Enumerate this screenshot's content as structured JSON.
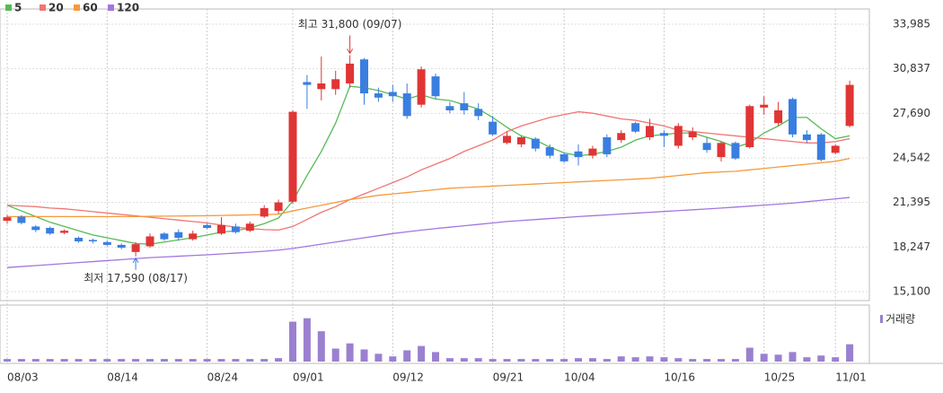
{
  "chart_data": {
    "type": "candlestick",
    "categories": [
      "08/03",
      null,
      null,
      null,
      null,
      null,
      null,
      "08/14",
      null,
      null,
      null,
      null,
      null,
      null,
      "08/24",
      null,
      null,
      null,
      null,
      null,
      "09/01",
      null,
      null,
      null,
      null,
      null,
      null,
      "09/12",
      null,
      null,
      null,
      null,
      null,
      null,
      "09/21",
      null,
      null,
      null,
      null,
      "10/04",
      null,
      null,
      null,
      null,
      null,
      null,
      "10/16",
      null,
      null,
      null,
      null,
      null,
      null,
      "10/25",
      null,
      null,
      null,
      null,
      "11/01",
      null
    ],
    "open": [
      20100,
      20400,
      19700,
      19600,
      19250,
      18900,
      18750,
      18600,
      18400,
      17900,
      18300,
      19200,
      19300,
      18800,
      19800,
      19200,
      19700,
      19400,
      20400,
      20800,
      21450,
      29900,
      29400,
      29400,
      29800,
      31500,
      29100,
      29200,
      29100,
      28300,
      30300,
      28200,
      28400,
      28000,
      27100,
      25600,
      25500,
      25900,
      25300,
      24800,
      25000,
      24700,
      26000,
      25800,
      27000,
      26000,
      26300,
      25400,
      26000,
      25600,
      24600,
      25600,
      25300,
      28100,
      27000,
      28700,
      26200,
      26200,
      24900,
      26800
    ],
    "high": [
      20500,
      20500,
      19800,
      19700,
      19500,
      19000,
      18850,
      18700,
      18500,
      18600,
      19200,
      19300,
      19500,
      19400,
      19900,
      20350,
      19900,
      20050,
      21200,
      21600,
      27900,
      30400,
      31700,
      30700,
      31800,
      31600,
      29500,
      29700,
      29800,
      31000,
      30500,
      28500,
      29200,
      28400,
      27500,
      26400,
      26100,
      26000,
      25500,
      24900,
      25500,
      25400,
      26200,
      26500,
      27100,
      27300,
      26500,
      27000,
      26700,
      26000,
      25700,
      25700,
      28300,
      28900,
      28500,
      28800,
      26500,
      26300,
      25500,
      30000
    ],
    "low": [
      19900,
      19850,
      19300,
      19100,
      19150,
      18550,
      18500,
      18300,
      18100,
      17590,
      18200,
      18700,
      18700,
      18700,
      19500,
      19100,
      19200,
      19300,
      20300,
      20600,
      21300,
      28000,
      28600,
      29000,
      29500,
      28300,
      28500,
      28500,
      27300,
      28100,
      28700,
      27700,
      27600,
      27200,
      26100,
      25500,
      25300,
      25000,
      24500,
      24200,
      24000,
      24500,
      24600,
      25600,
      26300,
      25800,
      25300,
      25200,
      25800,
      24900,
      24300,
      24400,
      25200,
      27600,
      26800,
      26000,
      25600,
      24300,
      24800,
      26700
    ],
    "close": [
      20350,
      19950,
      19450,
      19200,
      19400,
      18650,
      18650,
      18400,
      18200,
      18450,
      19000,
      18800,
      18900,
      19200,
      19600,
      19800,
      19300,
      19900,
      21000,
      21400,
      27800,
      29700,
      29800,
      30100,
      31200,
      29100,
      28800,
      28900,
      27500,
      30800,
      28900,
      27900,
      27900,
      27500,
      26200,
      26100,
      26000,
      25200,
      24700,
      24300,
      24600,
      25200,
      24800,
      26300,
      26400,
      26800,
      26100,
      26800,
      26400,
      25100,
      25600,
      24500,
      28200,
      28300,
      27900,
      26200,
      25800,
      24400,
      25400,
      29700
    ],
    "up_color": "#e03535",
    "down_color": "#3a7ee0",
    "ylim": [
      14467,
      35061
    ],
    "yticks": [
      {
        "value": 15100,
        "label": "15,100"
      },
      {
        "value": 18247,
        "label": "18,247"
      },
      {
        "value": 21395,
        "label": "21,395"
      },
      {
        "value": 24542,
        "label": "24,542"
      },
      {
        "value": 27690,
        "label": "27,690"
      },
      {
        "value": 30837,
        "label": "30,837"
      },
      {
        "value": 33985,
        "label": "33,985"
      }
    ],
    "moving_averages": [
      {
        "name": "5",
        "color": "#55bb55",
        "values": [
          21200,
          20800,
          20400,
          20000,
          19700,
          19400,
          19100,
          18900,
          18700,
          18500,
          18450,
          18600,
          18750,
          18900,
          19100,
          19300,
          19400,
          19600,
          19900,
          20300,
          21500,
          23300,
          25000,
          27000,
          29600,
          29500,
          29300,
          29000,
          28700,
          29000,
          28700,
          28600,
          28300,
          28000,
          27400,
          26700,
          26100,
          25800,
          25300,
          24900,
          24700,
          24800,
          25000,
          25300,
          25800,
          26100,
          26200,
          26300,
          26300,
          26000,
          25700,
          25300,
          25600,
          26300,
          26800,
          27400,
          27400,
          26600,
          25900,
          26100
        ]
      },
      {
        "name": "20",
        "color": "#f07575",
        "values": [
          21200,
          21150,
          21100,
          21000,
          20950,
          20850,
          20750,
          20650,
          20550,
          20450,
          20350,
          20250,
          20150,
          20050,
          19950,
          19800,
          19650,
          19550,
          19480,
          19450,
          19700,
          20200,
          20700,
          21100,
          21600,
          22000,
          22400,
          22800,
          23200,
          23700,
          24100,
          24500,
          25000,
          25400,
          25800,
          26400,
          26800,
          27100,
          27400,
          27600,
          27800,
          27700,
          27500,
          27300,
          27200,
          27000,
          26800,
          26500,
          26400,
          26300,
          26200,
          26100,
          26000,
          25900,
          25800,
          25700,
          25600,
          25600,
          25700,
          25900
        ]
      },
      {
        "name": "60",
        "color": "#f59a3c",
        "values": [
          20400,
          20400,
          20400,
          20400,
          20400,
          20400,
          20400,
          20400,
          20400,
          20400,
          20420,
          20430,
          20440,
          20450,
          20460,
          20480,
          20500,
          20520,
          20540,
          20570,
          20800,
          21000,
          21200,
          21400,
          21600,
          21750,
          21900,
          22000,
          22100,
          22200,
          22300,
          22400,
          22450,
          22500,
          22550,
          22600,
          22650,
          22700,
          22750,
          22800,
          22850,
          22900,
          22950,
          23000,
          23050,
          23100,
          23200,
          23300,
          23400,
          23500,
          23550,
          23600,
          23700,
          23800,
          23900,
          24000,
          24100,
          24200,
          24300,
          24500
        ]
      },
      {
        "name": "120",
        "color": "#a276e0",
        "values": [
          16800,
          16870,
          16940,
          17010,
          17080,
          17150,
          17220,
          17290,
          17360,
          17430,
          17500,
          17550,
          17600,
          17650,
          17700,
          17760,
          17820,
          17880,
          17950,
          18030,
          18150,
          18300,
          18450,
          18600,
          18750,
          18900,
          19050,
          19200,
          19320,
          19440,
          19550,
          19650,
          19750,
          19850,
          19950,
          20050,
          20120,
          20190,
          20260,
          20330,
          20400,
          20460,
          20520,
          20580,
          20640,
          20700,
          20760,
          20820,
          20880,
          20940,
          21000,
          21070,
          21140,
          21210,
          21280,
          21350,
          21450,
          21550,
          21650,
          21750
        ]
      }
    ],
    "volume": {
      "name": "거래량",
      "color": "#9b80d0",
      "ylim": [
        0,
        60
      ],
      "values": [
        3,
        3,
        3,
        3,
        3,
        3,
        3,
        3,
        3,
        3,
        3,
        3,
        3,
        3,
        3,
        3,
        3,
        3,
        3,
        4,
        46,
        50,
        35,
        15,
        21,
        14,
        9,
        6,
        13,
        18,
        11,
        4,
        4,
        4,
        3,
        3,
        3,
        3,
        3,
        3,
        4,
        4,
        3,
        6,
        5,
        6,
        5,
        4,
        3,
        3,
        3,
        3,
        16,
        9,
        8,
        11,
        5,
        7,
        5,
        20
      ]
    },
    "annotations": [
      {
        "text": "최고 31,800 (09/07)",
        "value": 31800,
        "color": "#e03535"
      },
      {
        "text": "최저 17,590 (08/17)",
        "value": 17590,
        "color": "#3a7ee0"
      }
    ]
  }
}
